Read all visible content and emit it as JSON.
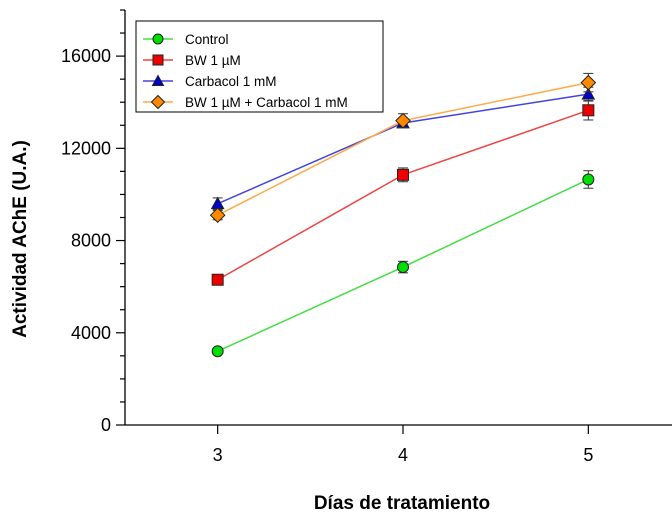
{
  "chart_data": {
    "type": "line",
    "title": "",
    "xlabel": "Días de tratamiento",
    "ylabel": "Actividad AChE (U.A.)",
    "x": [
      3,
      4,
      5
    ],
    "xlim": [
      2.5,
      5.5
    ],
    "ylim": [
      0,
      18000
    ],
    "yticks": [
      0,
      4000,
      8000,
      12000,
      16000
    ],
    "y_minor_step": 1000,
    "grid": false,
    "legend_position": "top-left",
    "series": [
      {
        "name": "Control",
        "marker": "circle",
        "color": "#00dd00",
        "line_color": "#44dd44",
        "values": [
          3200,
          6850,
          10650
        ],
        "errors": [
          80,
          250,
          380
        ]
      },
      {
        "name": "BW 1 µM",
        "marker": "square",
        "color": "#ee0000",
        "line_color": "#ee4444",
        "values": [
          6300,
          10850,
          13650
        ],
        "errors": [
          100,
          300,
          420
        ]
      },
      {
        "name": "Carbacol 1 mM",
        "marker": "triangle",
        "color": "#0000cc",
        "line_color": "#4444dd",
        "values": [
          9600,
          13100,
          14350
        ],
        "errors": [
          250,
          200,
          300
        ]
      },
      {
        "name": "BW 1 µM + Carbacol 1 mM",
        "marker": "diamond",
        "color": "#ff8800",
        "line_color": "#ffaa44",
        "values": [
          9100,
          13200,
          14850
        ],
        "errors": [
          200,
          300,
          400
        ]
      }
    ]
  }
}
